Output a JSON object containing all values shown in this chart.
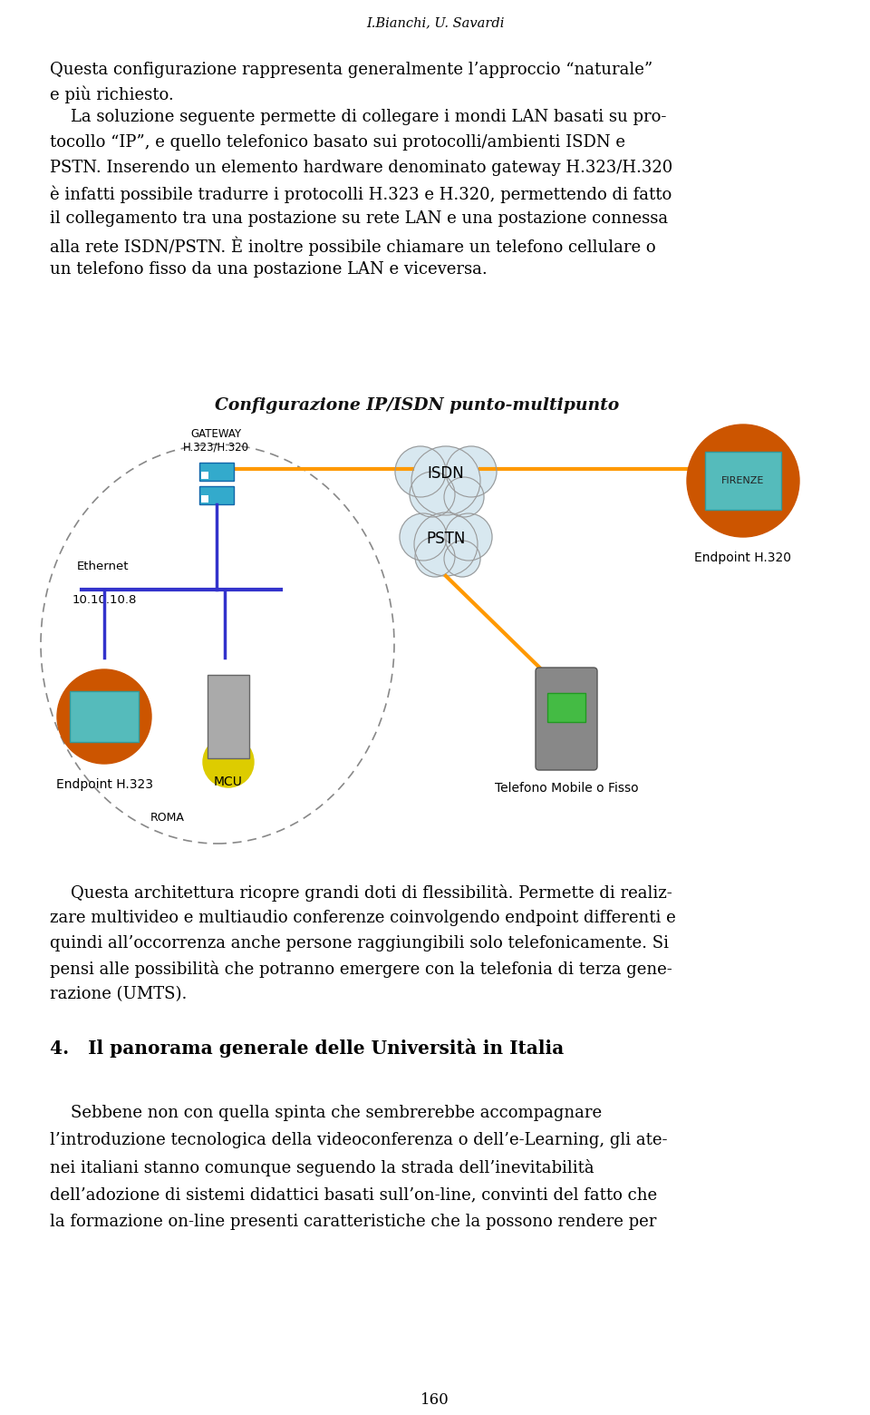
{
  "background_color": "#ffffff",
  "header_text": "I.Bianchi, U. Savardi",
  "para1": "Questa configurazione rappresenta generalmente l’approccio “naturale”\ne più richiesto.",
  "para2_lines": [
    "    La soluzione seguente permette di collegare i mondi LAN basati su pro-",
    "tocollo “IP”, e quello telefonico basato sui protocolli/ambienti ISDN e",
    "PSTN. Inserendo un elemento hardware denominato gateway H.323/H.320",
    "è infatti possibile tradurre i protocolli H.323 e H.320, permettendo di fatto",
    "il collegamento tra una postazione su rete LAN e una postazione connessa",
    "alla rete ISDN/PSTN. È inoltre possibile chiamare un telefono cellulare o",
    "un telefono fisso da una postazione LAN e viceversa."
  ],
  "diagram_title": "Configurazione IP/ISDN punto-multipunto",
  "label_gateway": "GATEWAY",
  "label_gateway2": "H.323/H.320",
  "label_ethernet": "Ethernet",
  "label_ip": "10.10.10.8",
  "label_isdn": "ISDN",
  "label_pstn": "PSTN",
  "label_endpoint323": "Endpoint H.323",
  "label_mcu": "MCU",
  "label_endpoint320": "Endpoint H.320",
  "label_mobile": "Telefono Mobile o Fisso",
  "label_roma": "ROMA",
  "label_firenze": "FIRENZE",
  "para3_lines": [
    "    Questa architettura ricopre grandi doti di flessibilità. Permette di realiz-",
    "zare multivideo e multiaudio conferenze coinvolgendo endpoint differenti e",
    "quindi all’occorrenza anche persone raggiungibili solo telefonicamente. Si",
    "pensi alle possibilità che potranno emergere con la telefonia di terza gene-",
    "razione (UMTS)."
  ],
  "section4_title": "4.   Il panorama generale delle Università in Italia",
  "para4_lines": [
    "    Sebbene non con quella spinta che sembrerebbe accompagnare",
    "l’introduzione tecnologica della videoconferenza o dell’e-Learning, gli ate-",
    "nei italiani stanno comunque seguendo la strada dell’inevitabilità",
    "dell’adozione di sistemi didattici basati sull’on-line, convinti del fatto che",
    "la formazione on-line presenti caratteristiche che la possono rendere per"
  ],
  "footer_text": "160",
  "text_color": "#000000",
  "line_color_blue": "#3333cc",
  "line_color_orange": "#ff9900"
}
